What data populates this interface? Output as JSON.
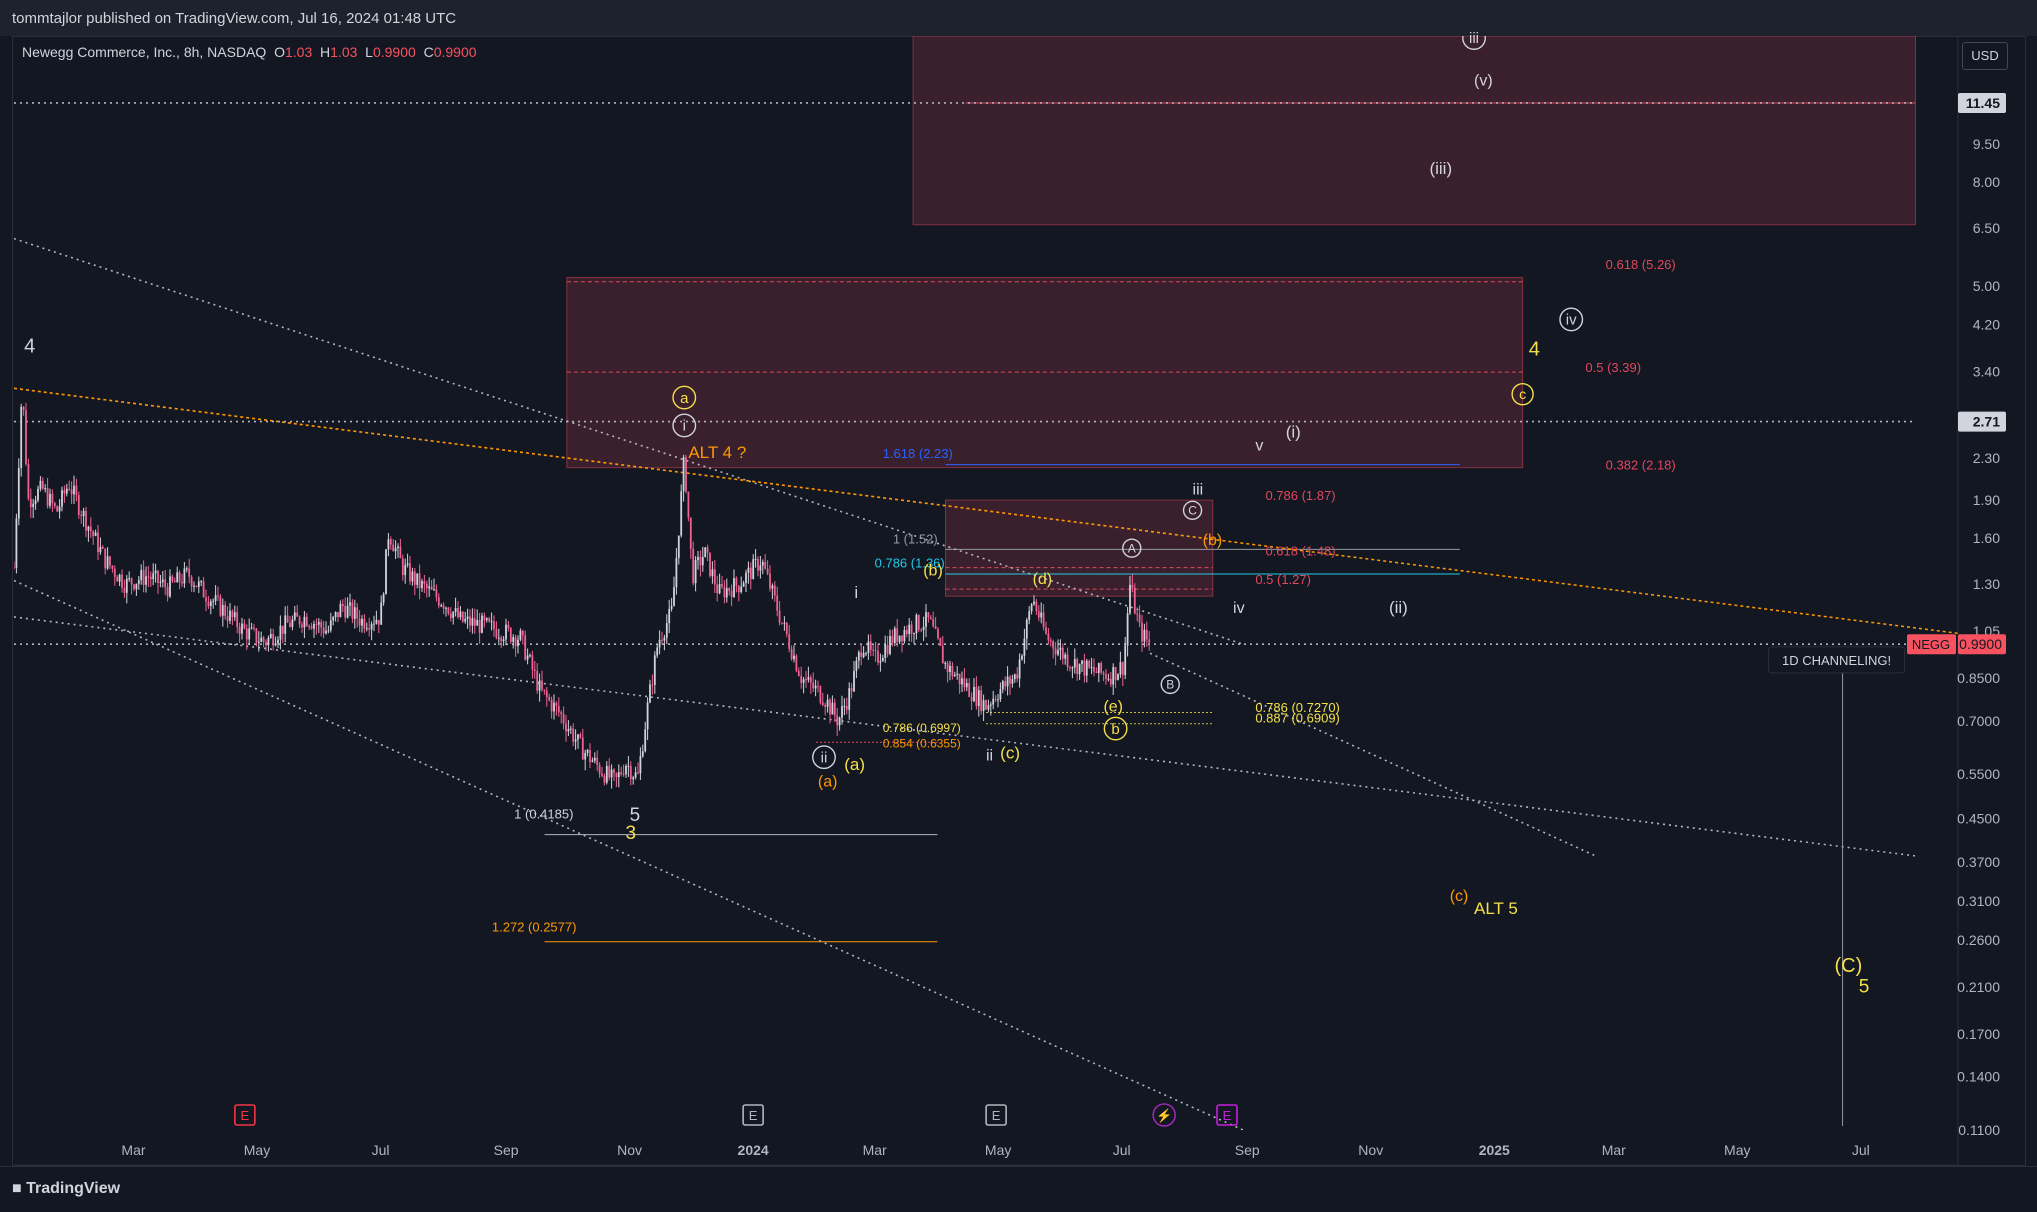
{
  "header": {
    "published": "tommtajlor published on TradingView.com, Jul 16, 2024 01:48 UTC"
  },
  "legend": {
    "symbol": "Newegg Commerce, Inc., 8h, NASDAQ",
    "o_label": "O",
    "o_value": "1.03",
    "h_label": "H",
    "h_value": "1.03",
    "l_label": "L",
    "l_value": "0.9900",
    "c_label": "C",
    "c_value": "0.9900"
  },
  "currency": "USD",
  "footer": {
    "brand": "TradingView"
  },
  "colors": {
    "bg": "#131722",
    "candle_up": "#d1d4dc",
    "candle_down": "#f06292",
    "zone": "#4a2432",
    "yellow": "#f5e04a",
    "orange": "#ff9800",
    "red_label": "#e0485c",
    "blue": "#2962ff",
    "cyan": "#22c8e8"
  },
  "chart_data": {
    "type": "line",
    "title": "",
    "y_scale": "log",
    "ylim": [
      0.11,
      15.5
    ],
    "x_range": [
      "2023-01-01",
      "2025-08-18"
    ],
    "last_price_tag": {
      "symbol": "NEGG",
      "value": "0.9900"
    },
    "price_tags": [
      {
        "value": "11.45"
      },
      {
        "value": "2.71"
      }
    ],
    "y_ticks": [
      {
        "v": 9.5,
        "label": "9.50"
      },
      {
        "v": 8.0,
        "label": "8.00"
      },
      {
        "v": 6.5,
        "label": "6.50"
      },
      {
        "v": 5.0,
        "label": "5.00"
      },
      {
        "v": 4.2,
        "label": "4.20"
      },
      {
        "v": 3.4,
        "label": "3.40"
      },
      {
        "v": 2.3,
        "label": "2.30"
      },
      {
        "v": 1.9,
        "label": "1.90"
      },
      {
        "v": 1.6,
        "label": "1.60"
      },
      {
        "v": 1.3,
        "label": "1.30"
      },
      {
        "v": 1.05,
        "label": "1.05"
      },
      {
        "v": 0.85,
        "label": "0.8500"
      },
      {
        "v": 0.7,
        "label": "0.7000"
      },
      {
        "v": 0.55,
        "label": "0.5500"
      },
      {
        "v": 0.45,
        "label": "0.4500"
      },
      {
        "v": 0.37,
        "label": "0.3700"
      },
      {
        "v": 0.31,
        "label": "0.3100"
      },
      {
        "v": 0.26,
        "label": "0.2600"
      },
      {
        "v": 0.21,
        "label": "0.2100"
      },
      {
        "v": 0.17,
        "label": "0.1700"
      },
      {
        "v": 0.14,
        "label": "0.1400"
      },
      {
        "v": 0.11,
        "label": "0.1100"
      }
    ],
    "x_ticks": [
      {
        "d": "2023-03-01",
        "label": "Mar"
      },
      {
        "d": "2023-05-01",
        "label": "May"
      },
      {
        "d": "2023-07-01",
        "label": "Jul"
      },
      {
        "d": "2023-09-01",
        "label": "Sep"
      },
      {
        "d": "2023-11-01",
        "label": "Nov"
      },
      {
        "d": "2024-01-01",
        "label": "2024",
        "bold": true
      },
      {
        "d": "2024-03-01",
        "label": "Mar"
      },
      {
        "d": "2024-05-01",
        "label": "May"
      },
      {
        "d": "2024-07-01",
        "label": "Jul"
      },
      {
        "d": "2024-09-01",
        "label": "Sep"
      },
      {
        "d": "2024-11-01",
        "label": "Nov"
      },
      {
        "d": "2025-01-01",
        "label": "2025",
        "bold": true
      },
      {
        "d": "2025-03-01",
        "label": "Mar"
      },
      {
        "d": "2025-05-01",
        "label": "May"
      },
      {
        "d": "2025-07-01",
        "label": "Jul"
      }
    ],
    "price_path": [
      [
        "2023-01-01",
        1.4
      ],
      [
        "2023-01-05",
        3.2
      ],
      [
        "2023-01-08",
        1.9
      ],
      [
        "2023-01-15",
        2.0
      ],
      [
        "2023-01-22",
        1.8
      ],
      [
        "2023-01-28",
        2.05
      ],
      [
        "2023-02-05",
        1.75
      ],
      [
        "2023-02-15",
        1.45
      ],
      [
        "2023-02-25",
        1.3
      ],
      [
        "2023-03-08",
        1.35
      ],
      [
        "2023-03-18",
        1.28
      ],
      [
        "2023-03-28",
        1.36
      ],
      [
        "2023-04-05",
        1.25
      ],
      [
        "2023-04-15",
        1.15
      ],
      [
        "2023-04-25",
        1.05
      ],
      [
        "2023-05-05",
        1.0
      ],
      [
        "2023-05-15",
        1.08
      ],
      [
        "2023-05-25",
        1.12
      ],
      [
        "2023-06-05",
        1.05
      ],
      [
        "2023-06-12",
        1.18
      ],
      [
        "2023-06-22",
        1.1
      ],
      [
        "2023-07-01",
        1.12
      ],
      [
        "2023-07-05",
        1.65
      ],
      [
        "2023-07-12",
        1.4
      ],
      [
        "2023-07-20",
        1.3
      ],
      [
        "2023-08-01",
        1.2
      ],
      [
        "2023-08-10",
        1.1
      ],
      [
        "2023-08-20",
        1.08
      ],
      [
        "2023-08-30",
        1.05
      ],
      [
        "2023-09-08",
        1.02
      ],
      [
        "2023-09-18",
        0.8
      ],
      [
        "2023-09-28",
        0.72
      ],
      [
        "2023-10-08",
        0.62
      ],
      [
        "2023-10-18",
        0.56
      ],
      [
        "2023-10-25",
        0.53
      ],
      [
        "2023-10-30",
        0.58
      ],
      [
        "2023-11-05",
        0.54
      ],
      [
        "2023-11-10",
        0.75
      ],
      [
        "2023-11-15",
        1.0
      ],
      [
        "2023-11-22",
        1.15
      ],
      [
        "2023-11-28",
        2.3
      ],
      [
        "2023-12-02",
        1.35
      ],
      [
        "2023-12-08",
        1.5
      ],
      [
        "2023-12-15",
        1.25
      ],
      [
        "2023-12-25",
        1.3
      ],
      [
        "2024-01-05",
        1.45
      ],
      [
        "2024-01-15",
        1.1
      ],
      [
        "2024-01-25",
        0.85
      ],
      [
        "2024-02-05",
        0.78
      ],
      [
        "2024-02-12",
        0.7
      ],
      [
        "2024-02-18",
        0.8
      ],
      [
        "2024-02-24",
        1.0
      ],
      [
        "2024-03-01",
        0.92
      ],
      [
        "2024-03-10",
        1.02
      ],
      [
        "2024-03-20",
        1.08
      ],
      [
        "2024-03-28",
        1.1
      ],
      [
        "2024-04-05",
        0.9
      ],
      [
        "2024-04-15",
        0.82
      ],
      [
        "2024-04-25",
        0.75
      ],
      [
        "2024-05-01",
        0.8
      ],
      [
        "2024-05-10",
        0.86
      ],
      [
        "2024-05-18",
        1.22
      ],
      [
        "2024-05-25",
        1.02
      ],
      [
        "2024-06-05",
        0.92
      ],
      [
        "2024-06-15",
        0.88
      ],
      [
        "2024-06-25",
        0.86
      ],
      [
        "2024-07-02",
        0.9
      ],
      [
        "2024-07-05",
        1.3
      ],
      [
        "2024-07-10",
        1.05
      ],
      [
        "2024-07-15",
        0.99
      ]
    ],
    "zones": [
      {
        "from": "2024-03-20",
        "to": "2025-07-28",
        "low": 6.6,
        "high": 15.5
      },
      {
        "from": "2023-10-01",
        "to": "2025-01-15",
        "low": 2.2,
        "high": 5.2
      },
      {
        "from": "2024-04-05",
        "to": "2024-08-15",
        "low": 1.23,
        "high": 1.9
      }
    ],
    "hlines": [
      {
        "from": "2024-04-15",
        "to": "2025-07-28",
        "v": 11.45,
        "color": "#e0485c",
        "w": 1
      },
      {
        "from": "2023-10-01",
        "to": "2025-01-15",
        "v": 3.39,
        "color": "#e0485c",
        "w": 1,
        "dash": "4 3"
      },
      {
        "from": "2023-10-01",
        "to": "2025-01-15",
        "v": 5.1,
        "color": "#e0485c",
        "w": 1,
        "dash": "4 3"
      },
      {
        "from": "2024-04-05",
        "to": "2024-12-15",
        "v": 2.23,
        "color": "#2962ff",
        "w": 1
      },
      {
        "from": "2024-04-05",
        "to": "2024-12-15",
        "v": 1.52,
        "color": "#9598a1",
        "w": 1
      },
      {
        "from": "2024-04-05",
        "to": "2024-12-15",
        "v": 1.36,
        "color": "#22c8e8",
        "w": 1
      },
      {
        "from": "2024-04-05",
        "to": "2024-08-15",
        "v": 1.4,
        "color": "#e0485c",
        "w": 1,
        "dash": "4 3"
      },
      {
        "from": "2024-04-05",
        "to": "2024-08-15",
        "v": 1.27,
        "color": "#e0485c",
        "w": 1,
        "dash": "4 3"
      },
      {
        "from": "2023-09-20",
        "to": "2024-04-01",
        "v": 0.4185,
        "color": "#b2b5be",
        "w": 1
      },
      {
        "from": "2023-09-20",
        "to": "2024-04-01",
        "v": 0.2577,
        "color": "#ff9800",
        "w": 1
      },
      {
        "from": "2024-04-25",
        "to": "2024-08-15",
        "v": 0.727,
        "color": "#c8c04a",
        "w": 1,
        "dash": "2 2"
      },
      {
        "from": "2024-04-25",
        "to": "2024-08-15",
        "v": 0.6909,
        "color": "#c8c04a",
        "w": 1,
        "dash": "2 2"
      },
      {
        "from": "2024-02-01",
        "to": "2024-04-01",
        "v": 0.6355,
        "color": "#e0485c",
        "w": 1,
        "dash": "2 2"
      }
    ],
    "trendlines": [
      {
        "x1": "2023-01-01",
        "y1": 6.2,
        "x2": "2024-08-30",
        "y2": 0.99,
        "color": "#b2b5be",
        "dash": "2 4"
      },
      {
        "x1": "2023-01-01",
        "y1": 1.32,
        "x2": "2024-08-30",
        "y2": 0.11,
        "color": "#b2b5be",
        "dash": "2 4"
      },
      {
        "x1": "2024-07-15",
        "y1": 0.95,
        "x2": "2025-02-20",
        "y2": 0.38,
        "color": "#b2b5be",
        "dash": "2 4"
      },
      {
        "x1": "2023-01-01",
        "y1": 1.12,
        "x2": "2025-07-28",
        "y2": 0.38,
        "color": "#b2b5be",
        "dash": "2 4"
      },
      {
        "x1": "2023-01-01",
        "y1": 3.15,
        "x2": "2025-08-18",
        "y2": 1.04,
        "color": "#ff9800",
        "dash": "3 3"
      },
      {
        "x1": "2023-01-01",
        "y1": 2.71,
        "x2": "2025-07-28",
        "y2": 2.71,
        "color": "#b2b5be",
        "dash": "2 4"
      },
      {
        "x1": "2023-01-01",
        "y1": 11.45,
        "x2": "2025-07-28",
        "y2": 11.45,
        "color": "#b2b5be",
        "dash": "2 4"
      },
      {
        "x1": "2023-01-01",
        "y1": 0.99,
        "x2": "2025-07-28",
        "y2": 0.99,
        "color": "#b2b5be",
        "dash": "2 4"
      }
    ],
    "vline": {
      "d": "2025-06-22",
      "from": 0.9,
      "to": 0.112
    },
    "annotations": [
      {
        "text": "4",
        "d": "2023-01-06",
        "v": 3.7,
        "color": "#d1d4dc",
        "size": 20
      },
      {
        "text": "a",
        "d": "2023-11-28",
        "v": 2.95,
        "color": "#f5e04a",
        "size": 15,
        "circle": true
      },
      {
        "text": "i",
        "d": "2023-11-28",
        "v": 2.6,
        "color": "#d1d4dc",
        "size": 15,
        "circle": true
      },
      {
        "text": "ALT 4 ?",
        "d": "2023-11-30",
        "v": 2.3,
        "color": "#ff9800",
        "size": 17
      },
      {
        "text": "1.618 (2.23)",
        "d": "2024-03-05",
        "v": 2.3,
        "color": "#2962ff",
        "size": 13
      },
      {
        "text": "0.786 (1.36)",
        "d": "2024-03-01",
        "v": 1.4,
        "color": "#22c8e8",
        "size": 13
      },
      {
        "text": "1 (1.52)",
        "d": "2024-03-10",
        "v": 1.56,
        "color": "#9598a1",
        "size": 13
      },
      {
        "text": "(b)",
        "d": "2024-03-25",
        "v": 1.35,
        "color": "#f5e04a",
        "size": 16
      },
      {
        "text": "(d)",
        "d": "2024-05-18",
        "v": 1.3,
        "color": "#f5e04a",
        "size": 16
      },
      {
        "text": "i",
        "d": "2024-02-20",
        "v": 1.22,
        "color": "#d1d4dc",
        "size": 17
      },
      {
        "text": "ii",
        "d": "2024-02-05",
        "v": 0.58,
        "color": "#d1d4dc",
        "size": 15,
        "circle": true
      },
      {
        "text": "(a)",
        "d": "2024-02-15",
        "v": 0.56,
        "color": "#f5e04a",
        "size": 17
      },
      {
        "text": "(a)",
        "d": "2024-02-02",
        "v": 0.52,
        "color": "#ff9800",
        "size": 16
      },
      {
        "text": "0.786 (0.6997)",
        "d": "2024-03-05",
        "v": 0.665,
        "color": "#f5e04a",
        "size": 12
      },
      {
        "text": "0.854 (0.6355)",
        "d": "2024-03-05",
        "v": 0.62,
        "color": "#ff9800",
        "size": 12
      },
      {
        "text": "ii",
        "d": "2024-04-25",
        "v": 0.585,
        "color": "#d1d4dc",
        "size": 16
      },
      {
        "text": "(c)",
        "d": "2024-05-02",
        "v": 0.59,
        "color": "#f5e04a",
        "size": 17
      },
      {
        "text": "(e)",
        "d": "2024-06-22",
        "v": 0.73,
        "color": "#f5e04a",
        "size": 16
      },
      {
        "text": "b",
        "d": "2024-06-28",
        "v": 0.66,
        "color": "#f5e04a",
        "size": 15,
        "circle": true
      },
      {
        "text": "A",
        "d": "2024-07-06",
        "v": 1.5,
        "color": "#d1d4dc",
        "size": 12,
        "circle": true
      },
      {
        "text": "B",
        "d": "2024-07-25",
        "v": 0.81,
        "color": "#d1d4dc",
        "size": 12,
        "circle": true
      },
      {
        "text": "C",
        "d": "2024-08-05",
        "v": 1.78,
        "color": "#d1d4dc",
        "size": 12,
        "circle": true
      },
      {
        "text": "iii",
        "d": "2024-08-05",
        "v": 1.95,
        "color": "#d1d4dc",
        "size": 16
      },
      {
        "text": "(b)",
        "d": "2024-08-10",
        "v": 1.55,
        "color": "#ff9800",
        "size": 16
      },
      {
        "text": "0.786 (1.87)",
        "d": "2024-09-10",
        "v": 1.9,
        "color": "#e0485c",
        "size": 13
      },
      {
        "text": "0.618 (1.48)",
        "d": "2024-09-10",
        "v": 1.48,
        "color": "#e0485c",
        "size": 13
      },
      {
        "text": "0.5 (1.27)",
        "d": "2024-09-05",
        "v": 1.3,
        "color": "#e0485c",
        "size": 13
      },
      {
        "text": "iv",
        "d": "2024-08-25",
        "v": 1.14,
        "color": "#d1d4dc",
        "size": 16
      },
      {
        "text": "(ii)",
        "d": "2024-11-10",
        "v": 1.14,
        "color": "#d1d4dc",
        "size": 17
      },
      {
        "text": "v",
        "d": "2024-09-05",
        "v": 2.38,
        "color": "#d1d4dc",
        "size": 16
      },
      {
        "text": "(i)",
        "d": "2024-09-20",
        "v": 2.52,
        "color": "#d1d4dc",
        "size": 17
      },
      {
        "text": "0.786 (0.7270)",
        "d": "2024-09-05",
        "v": 0.728,
        "color": "#f5e04a",
        "size": 13
      },
      {
        "text": "0.887 (0.6909)",
        "d": "2024-09-05",
        "v": 0.695,
        "color": "#f5e04a",
        "size": 13
      },
      {
        "text": "0.382 (2.18)",
        "d": "2025-02-25",
        "v": 2.18,
        "color": "#e0485c",
        "size": 13
      },
      {
        "text": "0.5 (3.39)",
        "d": "2025-02-15",
        "v": 3.39,
        "color": "#e0485c",
        "size": 13
      },
      {
        "text": "0.618 (5.26)",
        "d": "2025-02-25",
        "v": 5.4,
        "color": "#e0485c",
        "size": 13
      },
      {
        "text": "iv",
        "d": "2025-02-08",
        "v": 4.2,
        "color": "#d1d4dc",
        "size": 15,
        "circle": true
      },
      {
        "text": "4",
        "d": "2025-01-18",
        "v": 3.65,
        "color": "#f5e04a",
        "size": 20
      },
      {
        "text": "c",
        "d": "2025-01-15",
        "v": 3.0,
        "color": "#f5e04a",
        "size": 14,
        "circle": true
      },
      {
        "text": "(iii)",
        "d": "2024-11-30",
        "v": 8.3,
        "color": "#d1d4dc",
        "size": 17
      },
      {
        "text": "iii",
        "d": "2024-12-22",
        "v": 15.0,
        "color": "#d1d4dc",
        "size": 15,
        "circle": true
      },
      {
        "text": "(v)",
        "d": "2024-12-22",
        "v": 12.4,
        "color": "#d1d4dc",
        "size": 16
      },
      {
        "text": "1 (0.4185)",
        "d": "2023-09-05",
        "v": 0.45,
        "color": "#d1d4dc",
        "size": 13
      },
      {
        "text": "5",
        "d": "2023-11-01",
        "v": 0.445,
        "color": "#d1d4dc",
        "size": 19
      },
      {
        "text": "3",
        "d": "2023-10-30",
        "v": 0.41,
        "color": "#f5e04a",
        "size": 19
      },
      {
        "text": "1.272 (0.2577)",
        "d": "2023-08-25",
        "v": 0.27,
        "color": "#ff9800",
        "size": 13
      },
      {
        "text": "(c)",
        "d": "2024-12-10",
        "v": 0.31,
        "color": "#ff9800",
        "size": 16
      },
      {
        "text": "ALT 5",
        "d": "2024-12-22",
        "v": 0.292,
        "color": "#f5e04a",
        "size": 17
      },
      {
        "text": "(C)",
        "d": "2025-06-18",
        "v": 0.225,
        "color": "#f5e04a",
        "size": 20
      },
      {
        "text": "5",
        "d": "2025-06-30",
        "v": 0.205,
        "color": "#f5e04a",
        "size": 19
      }
    ],
    "callout": {
      "text": "1D CHANNELING!",
      "d": "2025-06-20",
      "v": 0.91
    },
    "events": [
      {
        "d": "2023-04-25",
        "label": "E",
        "color": "#f23645"
      },
      {
        "d": "2024-01-01",
        "label": "E",
        "color": "#b2b5be"
      },
      {
        "d": "2024-04-30",
        "label": "E",
        "color": "#b2b5be"
      },
      {
        "d": "2024-07-22",
        "label": "⚡",
        "color": "#9c27b0"
      },
      {
        "d": "2024-08-22",
        "label": "E",
        "color": "#c41fdc"
      }
    ]
  }
}
